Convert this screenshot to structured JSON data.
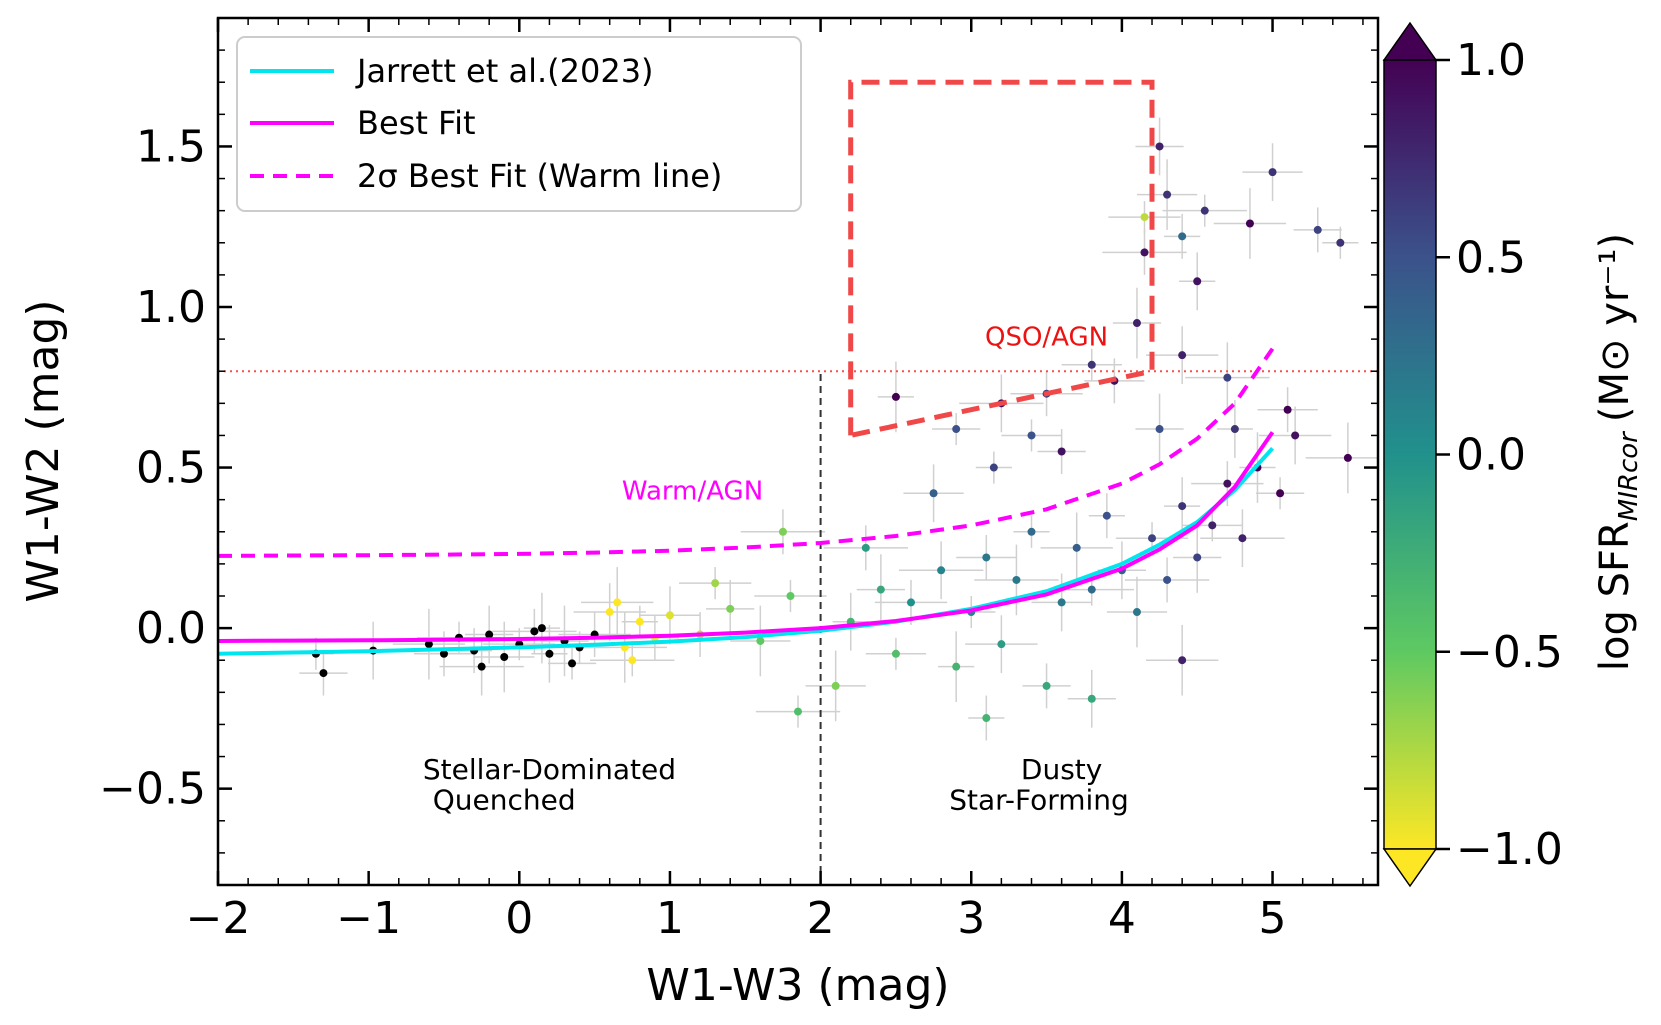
{
  "chart_data": {
    "type": "scatter",
    "xlabel": "W1-W3 (mag)",
    "ylabel": "W1-W2 (mag)",
    "xlim": [
      -2.0,
      5.7
    ],
    "ylim": [
      -0.8,
      1.9
    ],
    "xticks": [
      -2,
      -1,
      0,
      1,
      2,
      3,
      4,
      5
    ],
    "xtick_labels": [
      "−2",
      "−1",
      "0",
      "1",
      "2",
      "3",
      "4",
      "5"
    ],
    "yticks": [
      -0.5,
      0.0,
      0.5,
      1.0,
      1.5
    ],
    "ytick_labels": [
      "−0.5",
      "0.0",
      "0.5",
      "1.0",
      "1.5"
    ],
    "legend": {
      "placement": "top-left",
      "entries": [
        {
          "label": "Jarrett et al.(2023)",
          "color": "#00e5ee",
          "style": "solid"
        },
        {
          "label": "Best Fit",
          "color": "#ff00ff",
          "style": "solid"
        },
        {
          "label": "2σ Best Fit (Warm line)",
          "color": "#ff00ff",
          "style": "dashed"
        }
      ]
    },
    "colorbar": {
      "label": "log SFR",
      "label_subscript": "MIRcor",
      "label_units": "(M⊙ yr⁻¹)",
      "range": [
        -1.0,
        1.0
      ],
      "ticks": [
        -1.0,
        -0.5,
        0.0,
        0.5,
        1.0
      ],
      "tick_labels": [
        "−1.0",
        "−0.5",
        "0.0",
        "0.5",
        "1.0"
      ],
      "colors": [
        "#fde725",
        "#5ec962",
        "#21918c",
        "#3b528b",
        "#440154"
      ]
    },
    "series": [
      {
        "name": "Jarrett et al.(2023)",
        "x": [
          -2.0,
          -1.5,
          -1.0,
          -0.5,
          0.0,
          0.5,
          1.0,
          1.5,
          2.0,
          2.5,
          3.0,
          3.5,
          4.0,
          4.25,
          4.5,
          4.75,
          5.0
        ],
        "y": [
          -0.08,
          -0.076,
          -0.072,
          -0.066,
          -0.06,
          -0.052,
          -0.042,
          -0.028,
          -0.008,
          0.02,
          0.06,
          0.115,
          0.2,
          0.26,
          0.33,
          0.43,
          0.56
        ]
      },
      {
        "name": "Best Fit",
        "x": [
          -2.0,
          -1.5,
          -1.0,
          -0.5,
          0.0,
          0.5,
          1.0,
          1.5,
          2.0,
          2.5,
          3.0,
          3.5,
          4.0,
          4.25,
          4.5,
          4.75,
          5.0
        ],
        "y": [
          -0.04,
          -0.039,
          -0.038,
          -0.036,
          -0.034,
          -0.03,
          -0.024,
          -0.014,
          0.0,
          0.022,
          0.055,
          0.105,
          0.185,
          0.245,
          0.32,
          0.44,
          0.61
        ]
      },
      {
        "name": "2σ Best Fit (Warm line)",
        "x": [
          -2.0,
          -1.5,
          -1.0,
          -0.5,
          0.0,
          0.5,
          1.0,
          1.5,
          2.0,
          2.5,
          3.0,
          3.5,
          4.0,
          4.25,
          4.5,
          4.75,
          5.0
        ],
        "y": [
          0.225,
          0.226,
          0.227,
          0.229,
          0.231,
          0.235,
          0.241,
          0.251,
          0.265,
          0.287,
          0.32,
          0.37,
          0.45,
          0.51,
          0.59,
          0.7,
          0.87
        ]
      }
    ],
    "reference_lines": [
      {
        "kind": "horizontal",
        "y": 0.8,
        "color": "#ff4d4d",
        "style": "dotted"
      },
      {
        "kind": "vertical",
        "x": 2.0,
        "y_range": [
          -0.8,
          0.8
        ],
        "color": "#333333",
        "style": "dashed"
      }
    ],
    "qso_agn_box": {
      "x": [
        2.2,
        2.2,
        4.2,
        4.2,
        2.2
      ],
      "y": [
        0.6,
        1.7,
        1.7,
        0.8,
        0.6
      ],
      "color": "#f04848"
    },
    "annotations": [
      {
        "text": "QSO/AGN",
        "x": 3.5,
        "y": 0.88,
        "color": "#ee1111"
      },
      {
        "text": "Warm/AGN",
        "x": 1.15,
        "y": 0.4,
        "color": "#ff00ff"
      },
      {
        "text": "Stellar-Dominated",
        "x": 0.2,
        "y": -0.47,
        "color": "#000000"
      },
      {
        "text": "Quenched",
        "x": -0.1,
        "y": -0.565,
        "color": "#000000"
      },
      {
        "text": "Dusty",
        "x": 3.6,
        "y": -0.47,
        "color": "#000000"
      },
      {
        "text": "Star-Forming",
        "x": 3.45,
        "y": -0.565,
        "color": "#000000"
      }
    ],
    "scatter_points": [
      {
        "x": -1.35,
        "y": -0.08,
        "sfr": -1.5
      },
      {
        "x": -1.3,
        "y": -0.14,
        "sfr": -1.5
      },
      {
        "x": -0.97,
        "y": -0.07,
        "sfr": -1.5
      },
      {
        "x": -0.6,
        "y": -0.05,
        "sfr": -1.5
      },
      {
        "x": -0.4,
        "y": -0.03,
        "sfr": -1.5
      },
      {
        "x": -0.3,
        "y": -0.07,
        "sfr": -1.5
      },
      {
        "x": -0.2,
        "y": -0.02,
        "sfr": -1.5
      },
      {
        "x": -0.1,
        "y": -0.09,
        "sfr": -1.5
      },
      {
        "x": 0.0,
        "y": -0.05,
        "sfr": -1.5
      },
      {
        "x": 0.1,
        "y": -0.01,
        "sfr": -1.5
      },
      {
        "x": 0.2,
        "y": -0.08,
        "sfr": -1.5
      },
      {
        "x": 0.3,
        "y": -0.04,
        "sfr": -1.5
      },
      {
        "x": 0.4,
        "y": -0.06,
        "sfr": -1.5
      },
      {
        "x": 0.5,
        "y": -0.02,
        "sfr": -1.5
      },
      {
        "x": -0.25,
        "y": -0.12,
        "sfr": -1.5
      },
      {
        "x": 0.15,
        "y": 0.0,
        "sfr": -1.5
      },
      {
        "x": 0.35,
        "y": -0.11,
        "sfr": -1.5
      },
      {
        "x": -0.5,
        "y": -0.08,
        "sfr": -1.5
      },
      {
        "x": 0.6,
        "y": 0.05,
        "sfr": -1.0
      },
      {
        "x": 0.7,
        "y": -0.06,
        "sfr": -1.0
      },
      {
        "x": 0.8,
        "y": 0.02,
        "sfr": -1.0
      },
      {
        "x": 0.9,
        "y": -0.03,
        "sfr": -1.0
      },
      {
        "x": 1.0,
        "y": 0.04,
        "sfr": -0.9
      },
      {
        "x": 0.65,
        "y": 0.08,
        "sfr": -1.0
      },
      {
        "x": 0.75,
        "y": -0.1,
        "sfr": -1.0
      },
      {
        "x": 1.2,
        "y": -0.02,
        "sfr": -0.8
      },
      {
        "x": 1.4,
        "y": 0.06,
        "sfr": -0.6
      },
      {
        "x": 1.6,
        "y": -0.04,
        "sfr": -0.5
      },
      {
        "x": 1.8,
        "y": 0.1,
        "sfr": -0.5
      },
      {
        "x": 1.75,
        "y": 0.3,
        "sfr": -0.6
      },
      {
        "x": 2.2,
        "y": 0.02,
        "sfr": -0.3
      },
      {
        "x": 2.4,
        "y": 0.12,
        "sfr": -0.2
      },
      {
        "x": 2.5,
        "y": -0.08,
        "sfr": -0.4
      },
      {
        "x": 2.6,
        "y": 0.08,
        "sfr": 0.0
      },
      {
        "x": 2.8,
        "y": 0.18,
        "sfr": 0.1
      },
      {
        "x": 2.9,
        "y": -0.12,
        "sfr": -0.3
      },
      {
        "x": 3.0,
        "y": 0.05,
        "sfr": 0.1
      },
      {
        "x": 3.1,
        "y": 0.22,
        "sfr": 0.2
      },
      {
        "x": 3.2,
        "y": -0.05,
        "sfr": -0.1
      },
      {
        "x": 3.3,
        "y": 0.15,
        "sfr": 0.2
      },
      {
        "x": 3.4,
        "y": 0.3,
        "sfr": 0.3
      },
      {
        "x": 3.5,
        "y": -0.18,
        "sfr": -0.2
      },
      {
        "x": 3.6,
        "y": 0.08,
        "sfr": 0.2
      },
      {
        "x": 3.7,
        "y": 0.25,
        "sfr": 0.4
      },
      {
        "x": 3.8,
        "y": 0.12,
        "sfr": 0.3
      },
      {
        "x": 3.9,
        "y": 0.35,
        "sfr": 0.5
      },
      {
        "x": 4.0,
        "y": 0.18,
        "sfr": 0.4
      },
      {
        "x": 4.1,
        "y": 0.05,
        "sfr": 0.2
      },
      {
        "x": 4.2,
        "y": 0.28,
        "sfr": 0.6
      },
      {
        "x": 4.3,
        "y": 0.15,
        "sfr": 0.5
      },
      {
        "x": 4.4,
        "y": 0.38,
        "sfr": 0.7
      },
      {
        "x": 4.5,
        "y": 0.22,
        "sfr": 0.6
      },
      {
        "x": 4.6,
        "y": 0.32,
        "sfr": 0.8
      },
      {
        "x": 4.7,
        "y": 0.45,
        "sfr": 0.9
      },
      {
        "x": 4.8,
        "y": 0.28,
        "sfr": 0.8
      },
      {
        "x": 4.9,
        "y": 0.5,
        "sfr": 1.0
      },
      {
        "x": 5.05,
        "y": 0.42,
        "sfr": 1.0
      },
      {
        "x": 5.1,
        "y": 0.68,
        "sfr": 1.0
      },
      {
        "x": 5.15,
        "y": 0.6,
        "sfr": 0.9
      },
      {
        "x": 5.5,
        "y": 0.53,
        "sfr": 1.0
      },
      {
        "x": 5.45,
        "y": 1.2,
        "sfr": 0.7
      },
      {
        "x": 5.3,
        "y": 1.24,
        "sfr": 0.6
      },
      {
        "x": 5.0,
        "y": 1.42,
        "sfr": 0.7
      },
      {
        "x": 4.85,
        "y": 1.26,
        "sfr": 1.0
      },
      {
        "x": 4.55,
        "y": 1.3,
        "sfr": 0.7
      },
      {
        "x": 4.4,
        "y": 1.22,
        "sfr": 0.3
      },
      {
        "x": 4.25,
        "y": 1.5,
        "sfr": 0.8
      },
      {
        "x": 4.3,
        "y": 1.35,
        "sfr": 0.7
      },
      {
        "x": 4.15,
        "y": 1.28,
        "sfr": -0.8
      },
      {
        "x": 4.15,
        "y": 1.17,
        "sfr": 0.9
      },
      {
        "x": 4.5,
        "y": 1.08,
        "sfr": 0.9
      },
      {
        "x": 4.1,
        "y": 0.95,
        "sfr": 0.8
      },
      {
        "x": 3.8,
        "y": 0.82,
        "sfr": 0.7
      },
      {
        "x": 3.5,
        "y": 0.73,
        "sfr": 0.6
      },
      {
        "x": 3.2,
        "y": 0.7,
        "sfr": 0.9
      },
      {
        "x": 2.5,
        "y": 0.72,
        "sfr": 1.5
      },
      {
        "x": 2.9,
        "y": 0.62,
        "sfr": 0.5
      },
      {
        "x": 3.95,
        "y": 0.77,
        "sfr": 0.9
      },
      {
        "x": 4.4,
        "y": 0.85,
        "sfr": 0.8
      },
      {
        "x": 4.7,
        "y": 0.78,
        "sfr": 0.6
      },
      {
        "x": 3.15,
        "y": 0.5,
        "sfr": 0.6
      },
      {
        "x": 3.6,
        "y": 0.55,
        "sfr": 0.9
      },
      {
        "x": 2.75,
        "y": 0.42,
        "sfr": 0.4
      },
      {
        "x": 4.4,
        "y": -0.1,
        "sfr": 0.8
      },
      {
        "x": 1.85,
        "y": -0.26,
        "sfr": -0.4
      },
      {
        "x": 3.1,
        "y": -0.28,
        "sfr": -0.3
      },
      {
        "x": 3.8,
        "y": -0.22,
        "sfr": -0.2
      },
      {
        "x": 2.1,
        "y": -0.18,
        "sfr": -0.6
      },
      {
        "x": 1.3,
        "y": 0.14,
        "sfr": -0.7
      },
      {
        "x": 2.3,
        "y": 0.25,
        "sfr": -0.1
      },
      {
        "x": 4.75,
        "y": 0.62,
        "sfr": 0.7
      },
      {
        "x": 4.25,
        "y": 0.62,
        "sfr": 0.5
      },
      {
        "x": 3.4,
        "y": 0.6,
        "sfr": 0.5
      }
    ]
  }
}
